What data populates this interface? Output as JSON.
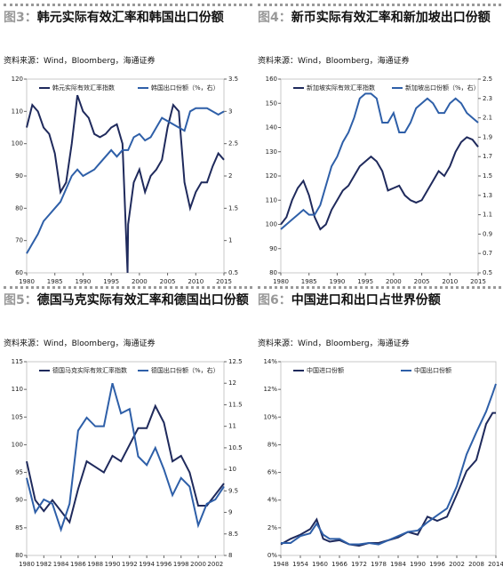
{
  "chart_data": [
    {
      "type": "line",
      "label": "图3：",
      "title": "韩元实际有效汇率和韩国出口份额",
      "source": "资料来源：Wind，Bloomberg，海通证券",
      "x": [
        1980,
        1981,
        1982,
        1983,
        1984,
        1985,
        1986,
        1987,
        1988,
        1989,
        1990,
        1991,
        1992,
        1993,
        1994,
        1995,
        1996,
        1997,
        1997.9,
        1998,
        1999,
        2000,
        2001,
        2002,
        2003,
        2004,
        2005,
        2006,
        2007,
        2008,
        2009,
        2010,
        2011,
        2012,
        2013,
        2014,
        2015
      ],
      "xlim": [
        1980,
        2015
      ],
      "xticks": [
        1980,
        1985,
        1990,
        1995,
        2000,
        2005,
        2010,
        2015
      ],
      "ylim": [
        60,
        120
      ],
      "yticks": [
        60,
        70,
        80,
        90,
        100,
        110,
        120
      ],
      "y2lim": [
        0.5,
        3.5
      ],
      "y2ticks": [
        0.5,
        1,
        1.5,
        2,
        2.5,
        3,
        3.5
      ],
      "series": [
        {
          "name": "韩元实际有效汇率指数",
          "color": "#1f2a5c",
          "values": [
            105,
            112,
            110,
            105,
            103,
            97,
            85,
            88,
            100,
            115,
            110,
            108,
            103,
            102,
            103,
            105,
            106,
            100,
            60,
            75,
            88,
            92,
            85,
            90,
            92,
            95,
            105,
            112,
            110,
            88,
            80,
            85,
            88,
            88,
            93,
            97,
            95
          ]
        },
        {
          "name": "韩国出口份额（%，右）",
          "color": "#2e5fa8",
          "axis": "y2",
          "values": [
            0.8,
            0.95,
            1.1,
            1.3,
            1.4,
            1.5,
            1.6,
            1.8,
            2.0,
            2.1,
            2.0,
            2.05,
            2.1,
            2.2,
            2.3,
            2.4,
            2.3,
            2.4,
            2.4,
            2.4,
            2.6,
            2.65,
            2.55,
            2.6,
            2.75,
            2.9,
            2.85,
            2.8,
            2.75,
            2.7,
            3.0,
            3.05,
            3.05,
            3.05,
            3.0,
            2.95,
            3.0
          ]
        }
      ]
    },
    {
      "type": "line",
      "label": "图4：",
      "title": "新币实际有效汇率和新加坡出口份额",
      "source": "资料来源：Wind，Bloomberg，海通证券",
      "x": [
        1980,
        1981,
        1982,
        1983,
        1984,
        1985,
        1986,
        1987,
        1988,
        1989,
        1990,
        1991,
        1992,
        1993,
        1994,
        1995,
        1996,
        1997,
        1998,
        1999,
        2000,
        2001,
        2002,
        2003,
        2004,
        2005,
        2006,
        2007,
        2008,
        2009,
        2010,
        2011,
        2012,
        2013,
        2014,
        2015
      ],
      "xlim": [
        1980,
        2015
      ],
      "xticks": [
        1980,
        1985,
        1990,
        1995,
        2000,
        2005,
        2010,
        2015
      ],
      "ylim": [
        80,
        160
      ],
      "yticks": [
        80,
        90,
        100,
        110,
        120,
        130,
        140,
        150,
        160
      ],
      "y2lim": [
        0.5,
        2.5
      ],
      "y2ticks": [
        0.5,
        0.7,
        0.9,
        1.1,
        1.3,
        1.5,
        1.7,
        1.9,
        2.1,
        2.3,
        2.5
      ],
      "series": [
        {
          "name": "新加坡实际有效汇率指数",
          "color": "#1f2a5c",
          "values": [
            100,
            103,
            110,
            115,
            118,
            112,
            103,
            98,
            100,
            106,
            110,
            114,
            116,
            120,
            124,
            126,
            128,
            126,
            122,
            114,
            115,
            116,
            112,
            110,
            109,
            110,
            114,
            118,
            122,
            120,
            124,
            130,
            134,
            136,
            135,
            132
          ]
        },
        {
          "name": "新加坡出口份额（%，右）",
          "color": "#2e5fa8",
          "axis": "y2",
          "values": [
            0.95,
            1.0,
            1.05,
            1.1,
            1.15,
            1.1,
            1.1,
            1.2,
            1.4,
            1.6,
            1.7,
            1.85,
            1.95,
            2.1,
            2.3,
            2.35,
            2.35,
            2.3,
            2.05,
            2.05,
            2.15,
            1.95,
            1.95,
            2.05,
            2.2,
            2.25,
            2.3,
            2.25,
            2.15,
            2.15,
            2.25,
            2.3,
            2.25,
            2.15,
            2.1,
            2.05
          ]
        }
      ]
    },
    {
      "type": "line",
      "label": "图5：",
      "title": "德国马克实际有效汇率和德国出口份额",
      "source": "资料来源：Wind，Bloomberg，海通证券",
      "x": [
        1980,
        1981,
        1982,
        1983,
        1984,
        1985,
        1986,
        1987,
        1988,
        1989,
        1990,
        1991,
        1992,
        1993,
        1994,
        1995,
        1996,
        1997,
        1998,
        1999,
        2000,
        2001,
        2002,
        2003
      ],
      "xlim": [
        1980,
        2003
      ],
      "xticks": [
        1980,
        1982,
        1984,
        1986,
        1988,
        1990,
        1992,
        1994,
        1996,
        1998,
        2000,
        2002
      ],
      "ylim": [
        80,
        115
      ],
      "yticks": [
        80,
        85,
        90,
        95,
        100,
        105,
        110,
        115
      ],
      "y2lim": [
        8,
        12.5
      ],
      "y2ticks": [
        8,
        8.5,
        9,
        9.5,
        10,
        10.5,
        11,
        11.5,
        12,
        12.5
      ],
      "series": [
        {
          "name": "德国马克实际有效汇率指数",
          "color": "#1f2a5c",
          "values": [
            97,
            90,
            88,
            90,
            88,
            86,
            92,
            97,
            96,
            95,
            98,
            97,
            100,
            103,
            103,
            107,
            104,
            97,
            98,
            95,
            89,
            89,
            91,
            93
          ]
        },
        {
          "name": "德国出口份额（%，右）",
          "color": "#2e5fa8",
          "axis": "y2",
          "values": [
            9.8,
            9.0,
            9.3,
            9.2,
            8.6,
            9.2,
            10.9,
            11.2,
            11.0,
            11.0,
            12.0,
            11.3,
            11.4,
            10.3,
            10.1,
            10.5,
            10.0,
            9.4,
            9.8,
            9.6,
            8.7,
            9.2,
            9.3,
            9.6
          ]
        }
      ]
    },
    {
      "type": "line",
      "label": "图6：",
      "title": "中国进口和出口占世界份额",
      "source": "资料来源：Wind，Bloomberg，海通证券",
      "x": [
        1948,
        1951,
        1954,
        1957,
        1959,
        1961,
        1963,
        1966,
        1969,
        1972,
        1975,
        1978,
        1981,
        1984,
        1987,
        1990,
        1993,
        1996,
        1999,
        2002,
        2005,
        2008,
        2011,
        2013,
        2014
      ],
      "xlim": [
        1948,
        2014
      ],
      "xticks": [
        1948,
        1954,
        1960,
        1966,
        1972,
        1978,
        1984,
        1990,
        1996,
        2002,
        2008,
        2014
      ],
      "ylim": [
        0,
        14
      ],
      "yticks": [
        {
          "value": 0,
          "label": "0%"
        },
        {
          "value": 2,
          "label": "2%"
        },
        {
          "value": 4,
          "label": "4%"
        },
        {
          "value": 6,
          "label": "6%"
        },
        {
          "value": 8,
          "label": "8%"
        },
        {
          "value": 10,
          "label": "10%"
        },
        {
          "value": 12,
          "label": "12%"
        },
        {
          "value": 14,
          "label": "14%"
        }
      ],
      "series": [
        {
          "name": "中国进口份额",
          "color": "#1f2a5c",
          "values": [
            0.8,
            1.2,
            1.5,
            1.9,
            2.6,
            1.2,
            1.0,
            1.1,
            0.8,
            0.7,
            0.9,
            0.9,
            1.1,
            1.3,
            1.7,
            1.5,
            2.8,
            2.5,
            2.8,
            4.4,
            6.1,
            6.9,
            9.5,
            10.3,
            10.3
          ]
        },
        {
          "name": "中国出口份额",
          "color": "#2e5fa8",
          "values": [
            0.9,
            0.9,
            1.4,
            1.6,
            2.3,
            1.5,
            1.2,
            1.2,
            0.8,
            0.8,
            0.9,
            0.8,
            1.1,
            1.4,
            1.7,
            1.8,
            2.4,
            2.9,
            3.4,
            5.0,
            7.3,
            8.9,
            10.4,
            11.7,
            12.4
          ]
        }
      ]
    }
  ]
}
